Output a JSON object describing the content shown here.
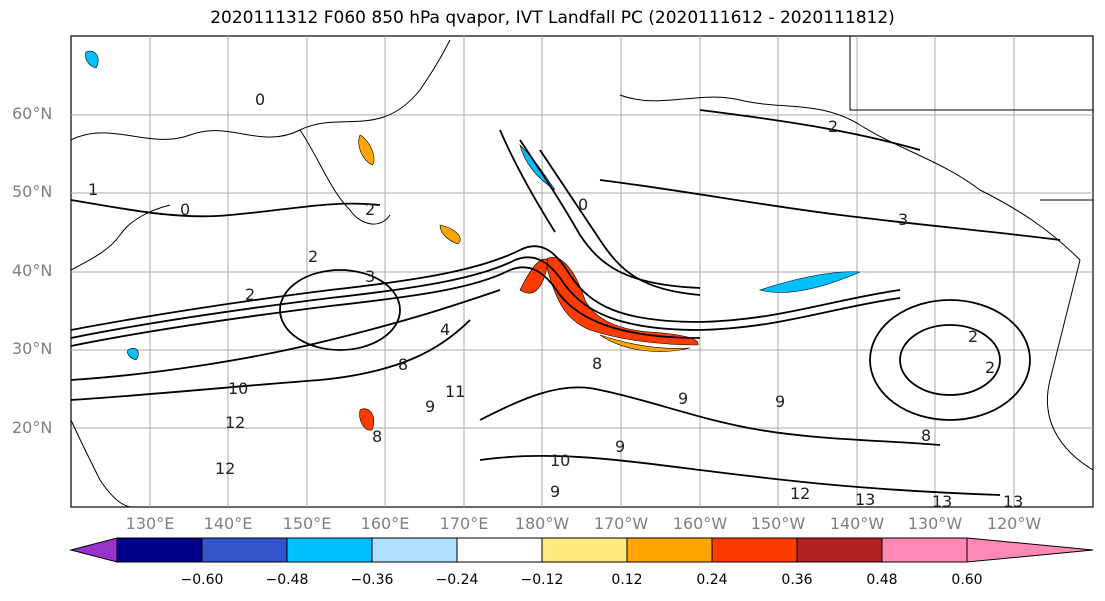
{
  "title": "2020111312 F060 850 hPa qvapor, IVT Landfall PC (2020111612 - 2020111812)",
  "map": {
    "lat_labels": [
      "60°N",
      "50°N",
      "40°N",
      "30°N",
      "20°N"
    ],
    "lon_labels": [
      "130°E",
      "140°E",
      "150°E",
      "160°E",
      "170°E",
      "180°W",
      "170°W",
      "160°W",
      "150°W",
      "140°W",
      "130°W",
      "120°W"
    ],
    "contour_labels": [
      "0",
      "1",
      "2",
      "0",
      "2",
      "3",
      "3",
      "2",
      "2",
      "4",
      "8",
      "10",
      "12",
      "12",
      "12",
      "11",
      "9",
      "8",
      "10",
      "9",
      "9",
      "9",
      "8",
      "13",
      "13",
      "13",
      "2",
      "2",
      "9",
      "8",
      "0"
    ],
    "fill_color_positive": "#ff3b00",
    "fill_color_negative": "#00bfff",
    "contour_color": "#000000"
  },
  "colorbar": {
    "colors": [
      "#9932cc",
      "#00008b",
      "#3355cc",
      "#00bfff",
      "#b0e0ff",
      "#ffffff",
      "#ffe980",
      "#ffa500",
      "#ff3b00",
      "#b22222",
      "#ff89b4"
    ],
    "tick_labels": [
      "−0.60",
      "−0.48",
      "−0.36",
      "−0.24",
      "−0.12",
      "0.12",
      "0.24",
      "0.36",
      "0.48",
      "0.60"
    ]
  }
}
